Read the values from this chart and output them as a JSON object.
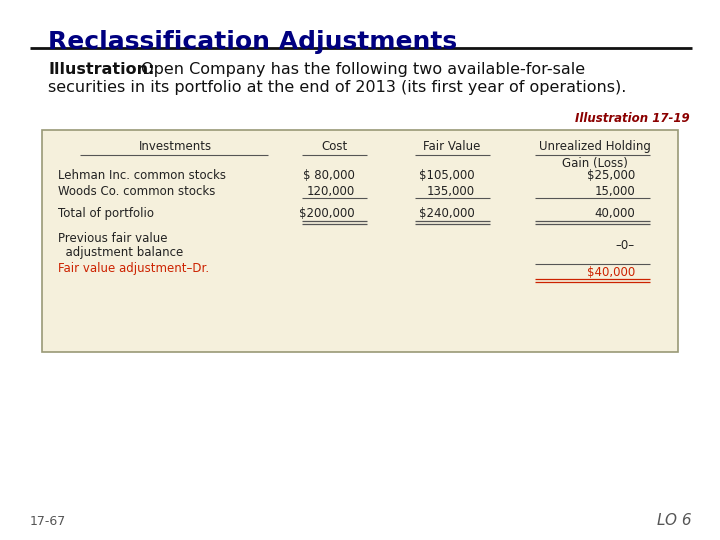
{
  "title": "Reclassification Adjustments",
  "subtitle_bold": "Illustration:",
  "subtitle_rest": " Open Company has the following two available-for-sale",
  "subtitle_line2": "securities in its portfolio at the end of 2013 (its first year of operations).",
  "illustration_label": "Illustration 17-19",
  "title_color": "#000080",
  "subtitle_color": "#111111",
  "illustration_label_color": "#8B0000",
  "table_bg": "#F5F0DC",
  "table_border": "#999977",
  "red_color": "#CC2200",
  "footer_left": "17-67",
  "footer_right": "LO 6",
  "footer_color": "#555555"
}
